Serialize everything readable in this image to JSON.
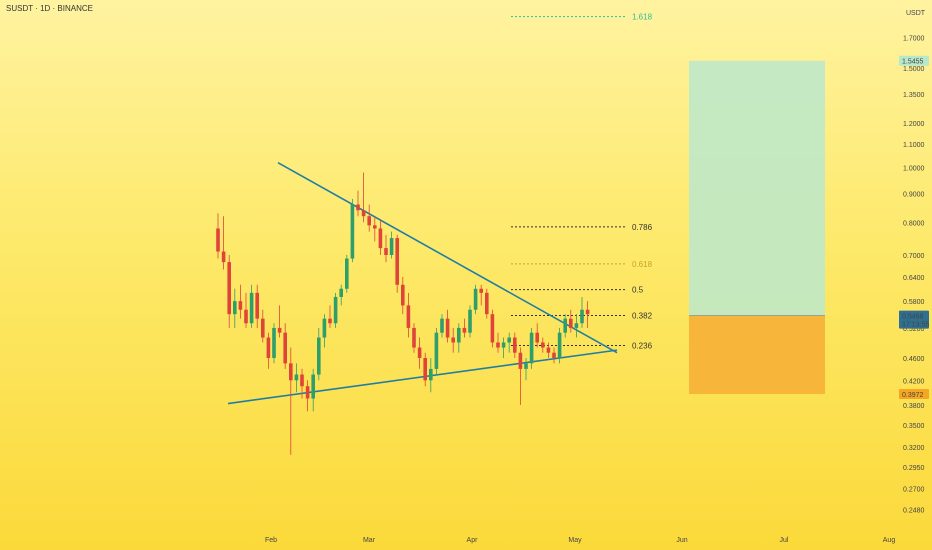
{
  "header": {
    "symbol_line": "SUSDT · 1D · BINANCE"
  },
  "chart_data": {
    "type": "candlestick",
    "title": "SUSDT · 1D · BINANCE",
    "y_unit": "USDT",
    "y_scale": "log",
    "ylim": [
      0.23,
      1.87
    ],
    "y_ticks": [
      "1.7000",
      "1.5000",
      "1.3500",
      "1.2000",
      "1.1000",
      "1.0000",
      "0.9000",
      "0.8000",
      "0.7000",
      "0.6400",
      "0.5800",
      "0.5200",
      "0.4600",
      "0.4200",
      "0.3800",
      "0.3500",
      "0.3200",
      "0.2950",
      "0.2700",
      "0.2480"
    ],
    "x_ticks": [
      "Feb",
      "Mar",
      "Apr",
      "May",
      "Jun",
      "Jul",
      "Aug"
    ],
    "price_badges": [
      {
        "value": "1.5455",
        "color": "#b6e8c9"
      },
      {
        "value": "0.5468",
        "sub": "17:13:55",
        "color": "#2f6f8f"
      },
      {
        "value": "0.3972",
        "color": "#f5a623"
      }
    ],
    "fib_levels": [
      {
        "label": "1.618",
        "value": 1.85,
        "color": "#2bbf9a"
      },
      {
        "label": "0.786",
        "value": 0.785,
        "color": "#333333"
      },
      {
        "label": "0.618",
        "value": 0.675,
        "color": "#c9a227"
      },
      {
        "label": "0.5",
        "value": 0.608,
        "color": "#333333"
      },
      {
        "label": "0.382",
        "value": 0.547,
        "color": "#333333"
      },
      {
        "label": "0.236",
        "value": 0.484,
        "color": "#333333"
      }
    ],
    "trendlines": [
      {
        "name": "upper",
        "from": [
          4,
          1.02
        ],
        "to": [
          47,
          0.47
        ]
      },
      {
        "name": "lower",
        "from": [
          0,
          0.382
        ],
        "to": [
          47,
          0.475
        ]
      }
    ],
    "position": {
      "target": 1.5455,
      "entry": 0.5468,
      "stop": 0.3972
    },
    "candles": [
      [
        0.78,
        0.83,
        0.69,
        0.71
      ],
      [
        0.71,
        0.82,
        0.66,
        0.68
      ],
      [
        0.68,
        0.7,
        0.52,
        0.55
      ],
      [
        0.55,
        0.61,
        0.52,
        0.58
      ],
      [
        0.58,
        0.62,
        0.54,
        0.56
      ],
      [
        0.56,
        0.6,
        0.52,
        0.53
      ],
      [
        0.53,
        0.62,
        0.52,
        0.6
      ],
      [
        0.6,
        0.62,
        0.52,
        0.54
      ],
      [
        0.54,
        0.56,
        0.49,
        0.5
      ],
      [
        0.5,
        0.51,
        0.44,
        0.46
      ],
      [
        0.46,
        0.53,
        0.45,
        0.52
      ],
      [
        0.52,
        0.57,
        0.5,
        0.51
      ],
      [
        0.51,
        0.53,
        0.44,
        0.45
      ],
      [
        0.45,
        0.48,
        0.31,
        0.42
      ],
      [
        0.42,
        0.45,
        0.4,
        0.43
      ],
      [
        0.43,
        0.44,
        0.39,
        0.41
      ],
      [
        0.41,
        0.42,
        0.37,
        0.39
      ],
      [
        0.39,
        0.44,
        0.37,
        0.43
      ],
      [
        0.43,
        0.52,
        0.42,
        0.5
      ],
      [
        0.5,
        0.55,
        0.48,
        0.54
      ],
      [
        0.54,
        0.57,
        0.52,
        0.53
      ],
      [
        0.53,
        0.6,
        0.52,
        0.59
      ],
      [
        0.59,
        0.62,
        0.57,
        0.61
      ],
      [
        0.61,
        0.7,
        0.6,
        0.69
      ],
      [
        0.69,
        0.88,
        0.68,
        0.86
      ],
      [
        0.86,
        0.91,
        0.82,
        0.84
      ],
      [
        0.84,
        0.98,
        0.8,
        0.82
      ],
      [
        0.82,
        0.86,
        0.77,
        0.79
      ],
      [
        0.79,
        0.82,
        0.74,
        0.78
      ],
      [
        0.78,
        0.81,
        0.7,
        0.72
      ],
      [
        0.72,
        0.76,
        0.68,
        0.7
      ],
      [
        0.7,
        0.77,
        0.69,
        0.75
      ],
      [
        0.75,
        0.76,
        0.6,
        0.62
      ],
      [
        0.62,
        0.64,
        0.55,
        0.57
      ],
      [
        0.57,
        0.6,
        0.5,
        0.52
      ],
      [
        0.52,
        0.53,
        0.47,
        0.48
      ],
      [
        0.48,
        0.5,
        0.44,
        0.46
      ],
      [
        0.46,
        0.47,
        0.41,
        0.42
      ],
      [
        0.42,
        0.46,
        0.4,
        0.44
      ],
      [
        0.44,
        0.52,
        0.43,
        0.51
      ],
      [
        0.51,
        0.55,
        0.5,
        0.54
      ],
      [
        0.54,
        0.56,
        0.49,
        0.5
      ],
      [
        0.5,
        0.52,
        0.47,
        0.49
      ],
      [
        0.49,
        0.53,
        0.47,
        0.52
      ],
      [
        0.52,
        0.54,
        0.5,
        0.51
      ],
      [
        0.51,
        0.57,
        0.5,
        0.56
      ],
      [
        0.56,
        0.62,
        0.55,
        0.61
      ],
      [
        0.61,
        0.62,
        0.57,
        0.6
      ],
      [
        0.6,
        0.61,
        0.54,
        0.55
      ],
      [
        0.55,
        0.56,
        0.48,
        0.49
      ],
      [
        0.49,
        0.51,
        0.47,
        0.48
      ],
      [
        0.48,
        0.5,
        0.46,
        0.49
      ],
      [
        0.49,
        0.51,
        0.47,
        0.5
      ],
      [
        0.5,
        0.51,
        0.46,
        0.47
      ],
      [
        0.47,
        0.48,
        0.38,
        0.44
      ],
      [
        0.44,
        0.46,
        0.42,
        0.45
      ],
      [
        0.45,
        0.52,
        0.44,
        0.51
      ],
      [
        0.51,
        0.53,
        0.48,
        0.49
      ],
      [
        0.49,
        0.5,
        0.47,
        0.48
      ],
      [
        0.48,
        0.49,
        0.46,
        0.47
      ],
      [
        0.47,
        0.48,
        0.45,
        0.46
      ],
      [
        0.46,
        0.52,
        0.45,
        0.51
      ],
      [
        0.51,
        0.55,
        0.5,
        0.54
      ],
      [
        0.54,
        0.56,
        0.51,
        0.52
      ],
      [
        0.52,
        0.55,
        0.5,
        0.53
      ],
      [
        0.53,
        0.59,
        0.52,
        0.56
      ],
      [
        0.56,
        0.58,
        0.52,
        0.55
      ]
    ]
  }
}
